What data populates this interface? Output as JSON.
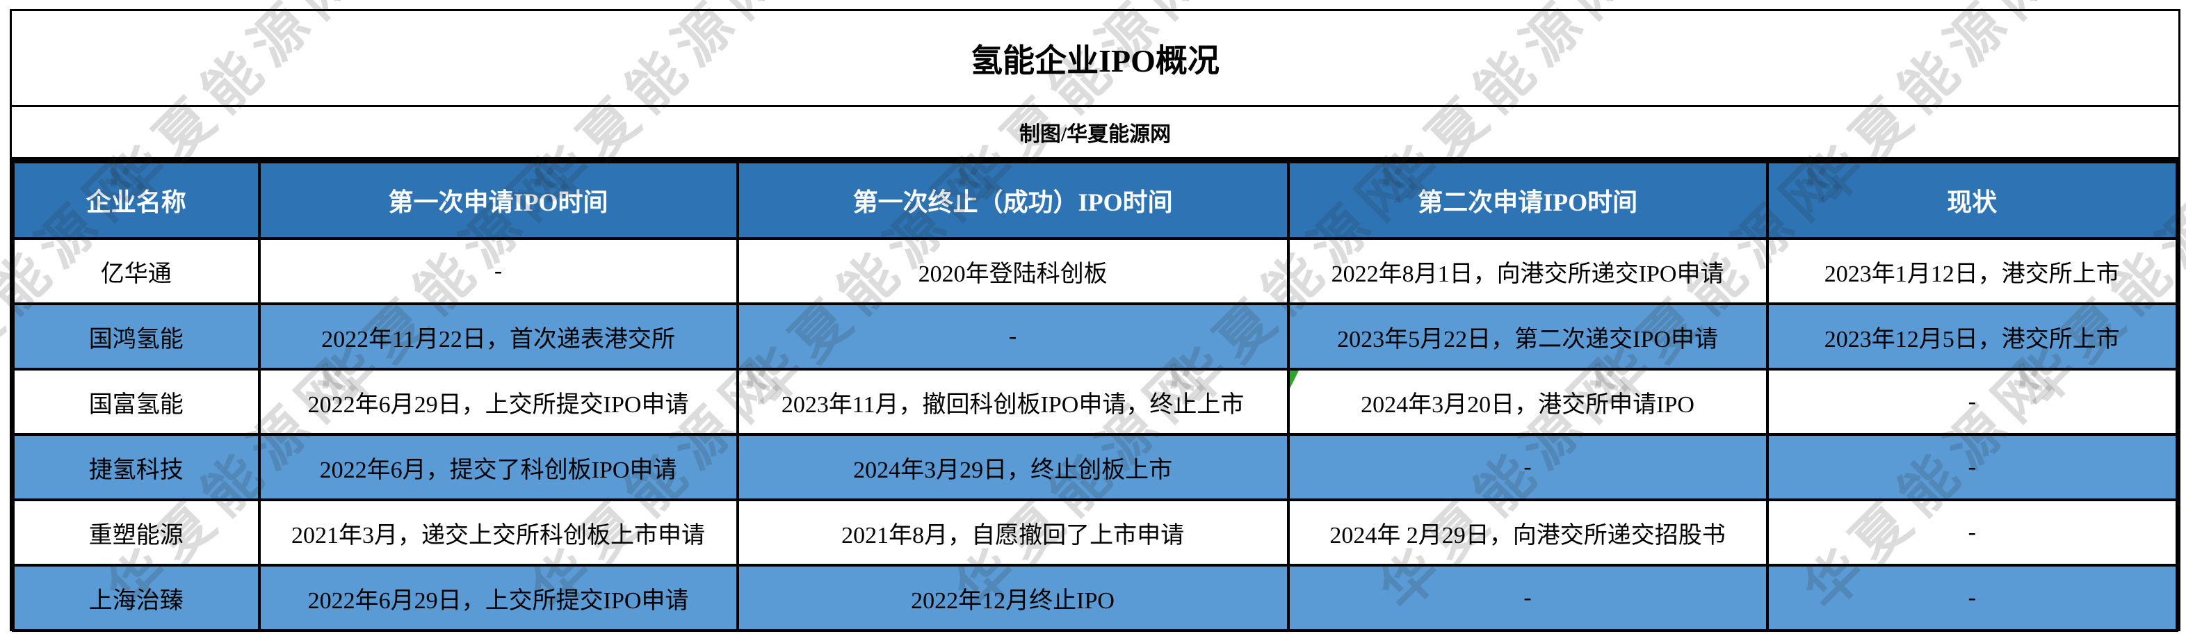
{
  "title": "氢能企业IPO概况",
  "subtitle": "制图/华夏能源网",
  "watermark": {
    "text": "华夏能源网"
  },
  "colors": {
    "header_bg": "#2E74B5",
    "alt_row_bg": "#5B9BD5",
    "border": "#000000",
    "header_text": "#FFFFFF",
    "flag_green": "#2BA52B",
    "watermark_gray": "#C9C9C9"
  },
  "chart_data": {
    "type": "table",
    "title": "氢能企业IPO概况",
    "credit": "制图/华夏能源网",
    "headers": [
      "企业名称",
      "第一次申请IPO时间",
      "第一次终止（成功）IPO时间",
      "第二次申请IPO时间",
      "现状"
    ],
    "rows": [
      [
        "亿华通",
        "-",
        "2020年登陆科创板",
        "2022年8月1日，向港交所递交IPO申请",
        "2023年1月12日，港交所上市"
      ],
      [
        "国鸿氢能",
        "2022年11月22日，首次递表港交所",
        "-",
        "2023年5月22日，第二次递交IPO申请",
        "2023年12月5日，港交所上市"
      ],
      [
        "国富氢能",
        "2022年6月29日，上交所提交IPO申请",
        "2023年11月，撤回科创板IPO申请，终止上市",
        "2024年3月20日，港交所申请IPO",
        "-"
      ],
      [
        "捷氢科技",
        "2022年6月，提交了科创板IPO申请",
        "2024年3月29日，终止创板上市",
        "-",
        "-"
      ],
      [
        "重塑能源",
        "2021年3月，递交上交所科创板上市申请",
        "2021年8月，自愿撤回了上市申请",
        "2024年 2月29日，向港交所递交招股书",
        "-"
      ],
      [
        "上海治臻",
        "2022年6月29日，上交所提交IPO申请",
        "2022年12月终止IPO",
        "-",
        "-"
      ]
    ]
  },
  "table": {
    "headers": [
      "企业名称",
      "第一次申请IPO时间",
      "第一次终止（成功）IPO时间",
      "第二次申请IPO时间",
      "现状"
    ],
    "rows": [
      {
        "cells": [
          "亿华通",
          "-",
          "2020年登陆科创板",
          "2022年8月1日，向港交所递交IPO申请",
          "2023年1月12日，港交所上市"
        ],
        "highlight": false
      },
      {
        "cells": [
          "国鸿氢能",
          "2022年11月22日，首次递表港交所",
          "-",
          "2023年5月22日，第二次递交IPO申请",
          "2023年12月5日，港交所上市"
        ],
        "highlight": true
      },
      {
        "cells": [
          "国富氢能",
          "2022年6月29日，上交所提交IPO申请",
          "2023年11月，撤回科创板IPO申请，终止上市",
          "2024年3月20日，港交所申请IPO",
          "-"
        ],
        "highlight": false
      },
      {
        "cells": [
          "捷氢科技",
          "2022年6月，提交了科创板IPO申请",
          "2024年3月29日，终止创板上市",
          "-",
          "-"
        ],
        "highlight": true
      },
      {
        "cells": [
          "重塑能源",
          "2021年3月，递交上交所科创板上市申请",
          "2021年8月，自愿撤回了上市申请",
          "2024年 2月29日，向港交所递交招股书",
          "-"
        ],
        "highlight": false
      },
      {
        "cells": [
          "上海治臻",
          "2022年6月29日，上交所提交IPO申请",
          "2022年12月终止IPO",
          "-",
          "-"
        ],
        "highlight": true
      }
    ]
  }
}
